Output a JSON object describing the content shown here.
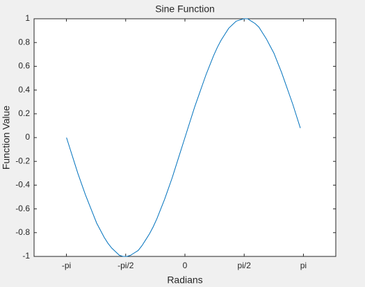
{
  "chart_data": {
    "type": "line",
    "title": "Sine Function",
    "xlabel": "Radians",
    "ylabel": "Function Value",
    "x": [
      -3.14,
      -3.04,
      -2.94,
      -2.84,
      -2.74,
      -2.64,
      -2.54,
      -2.44,
      -2.34,
      -2.24,
      -2.14,
      -2.04,
      -1.94,
      -1.84,
      -1.74,
      -1.64,
      -1.54,
      -1.44,
      -1.34,
      -1.24,
      -1.14,
      -1.04,
      -0.94,
      -0.84,
      -0.74,
      -0.64,
      -0.54,
      -0.44,
      -0.34,
      -0.24,
      -0.14,
      -0.04,
      0.06,
      0.16,
      0.26,
      0.36,
      0.46,
      0.56,
      0.66,
      0.76,
      0.86,
      0.96,
      1.06,
      1.16,
      1.26,
      1.36,
      1.46,
      1.56,
      1.66,
      1.76,
      1.86,
      1.96,
      2.06,
      2.16,
      2.26,
      2.36,
      2.46,
      2.56,
      2.66,
      2.76,
      2.86,
      2.96,
      3.06
    ],
    "series": [
      {
        "color": "#0072bd",
        "values": [
          0,
          -0.1,
          -0.2,
          -0.3,
          -0.39,
          -0.48,
          -0.56,
          -0.64,
          -0.72,
          -0.78,
          -0.84,
          -0.89,
          -0.93,
          -0.96,
          -0.99,
          -1,
          -1,
          -0.99,
          -0.97,
          -0.95,
          -0.91,
          -0.86,
          -0.81,
          -0.75,
          -0.68,
          -0.6,
          -0.52,
          -0.43,
          -0.34,
          -0.24,
          -0.14,
          -0.04,
          0.06,
          0.16,
          0.26,
          0.35,
          0.44,
          0.53,
          0.61,
          0.69,
          0.76,
          0.82,
          0.87,
          0.92,
          0.95,
          0.98,
          0.99,
          1,
          1,
          0.98,
          0.96,
          0.93,
          0.88,
          0.83,
          0.77,
          0.71,
          0.63,
          0.55,
          0.46,
          0.37,
          0.28,
          0.18,
          0.08
        ]
      }
    ],
    "xlim": [
      -4,
      4
    ],
    "xticks": [
      {
        "value": -3.141592653589793,
        "label": "-pi"
      },
      {
        "value": -1.5707963267948966,
        "label": "-pi/2"
      },
      0,
      {
        "value": 1.5707963267948966,
        "label": "pi/2"
      },
      {
        "value": 3.141592653589793,
        "label": "pi"
      }
    ],
    "ylim": [
      -1,
      1
    ],
    "yticks": [
      -1,
      -0.8,
      -0.6,
      -0.4,
      -0.2,
      0,
      0.2,
      0.4,
      0.6,
      0.8,
      1
    ]
  }
}
